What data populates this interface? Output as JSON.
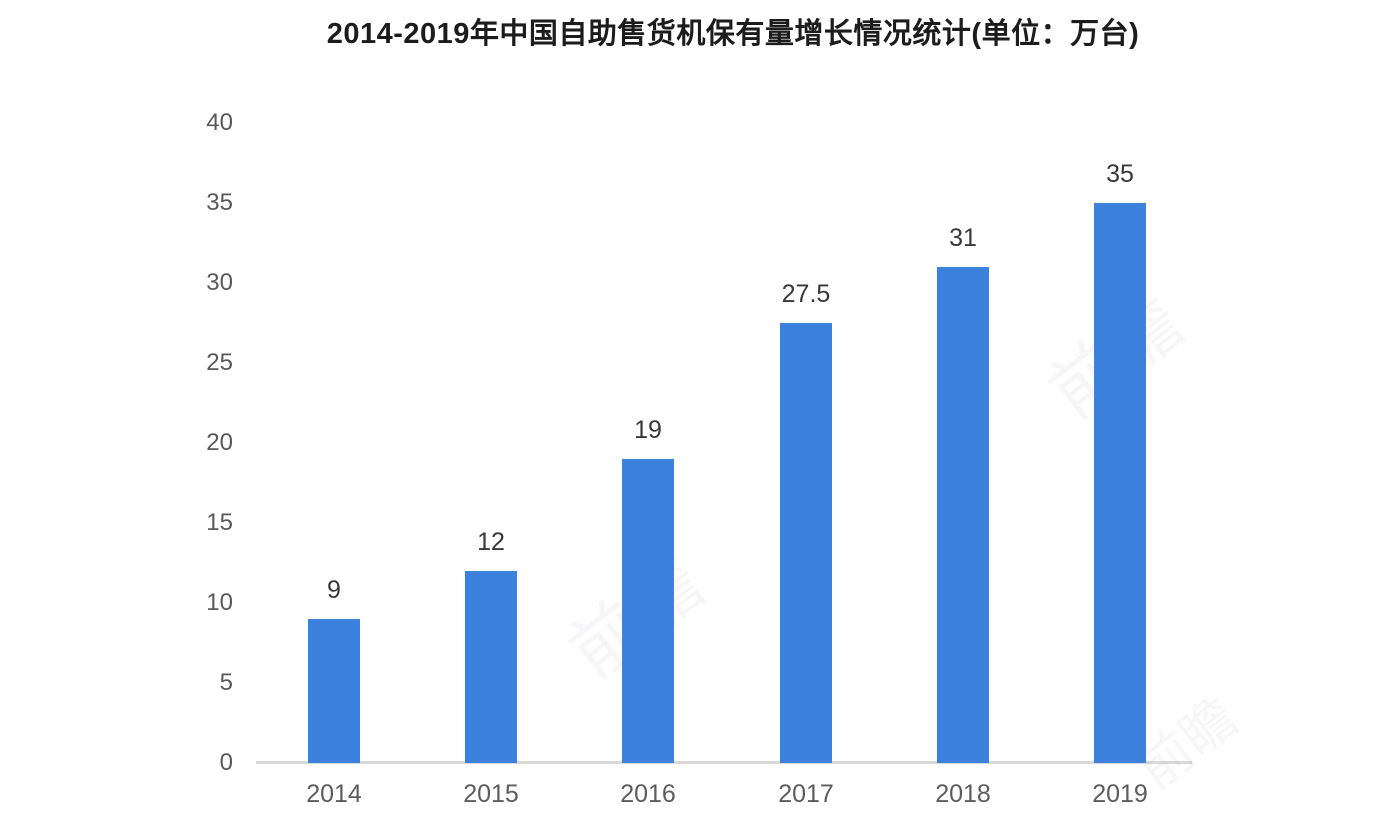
{
  "title": "2014-2019年中国自助售货机保有量增长情况统计(单位：万台)",
  "watermark_text": "前瞻",
  "chart_data": {
    "type": "bar",
    "title": "2014-2019年中国自助售货机保有量增长情况统计(单位：万台)",
    "categories": [
      "2014",
      "2015",
      "2016",
      "2017",
      "2018",
      "2019"
    ],
    "values": [
      9,
      12,
      19,
      27.5,
      31,
      35
    ],
    "value_labels": [
      "9",
      "12",
      "19",
      "27.5",
      "31",
      "35"
    ],
    "unit": "万台",
    "xlabel": "",
    "ylabel": "",
    "ylim": [
      0,
      40
    ],
    "yticks": [
      0,
      5,
      10,
      15,
      20,
      25,
      30,
      35,
      40
    ],
    "grid": false,
    "legend": "none",
    "bar_color": "#3c82dc",
    "value_label_color": "#383838",
    "tick_label_color": "#595959",
    "axis_line_color": "#d9d9d9",
    "title_color": "#1c1c1c",
    "background_color": "#ffffff"
  }
}
